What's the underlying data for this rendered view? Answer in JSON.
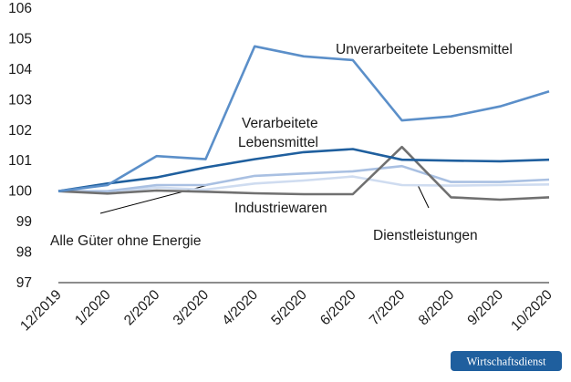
{
  "chart_data": {
    "type": "line",
    "categories": [
      "12/2019",
      "1/2020",
      "2/2020",
      "3/2020",
      "4/2020",
      "5/2020",
      "6/2020",
      "7/2020",
      "8/2020",
      "9/2020",
      "10/2020"
    ],
    "ylim": [
      97,
      106
    ],
    "yticks": [
      97,
      98,
      99,
      100,
      101,
      102,
      103,
      104,
      105,
      106
    ],
    "grid": false,
    "legend": "inline labels",
    "series": [
      {
        "name": "Unverarbeitete Lebensmittel",
        "color": "#5b8fc9",
        "values": [
          100.0,
          100.2,
          101.15,
          101.05,
          104.75,
          104.42,
          104.3,
          102.32,
          102.45,
          102.78,
          103.27
        ]
      },
      {
        "name": "Verarbeitete Lebensmittel",
        "color": "#1f5f9e",
        "values": [
          100.0,
          100.25,
          100.45,
          100.78,
          101.05,
          101.28,
          101.38,
          101.03,
          101.0,
          100.98,
          101.03
        ]
      },
      {
        "name": "Industriewaren",
        "color": "#a9c0e2",
        "values": [
          100.0,
          100.0,
          100.2,
          100.2,
          100.5,
          100.58,
          100.65,
          100.82,
          100.3,
          100.3,
          100.38
        ]
      },
      {
        "name": "Alle Güter ohne Energie",
        "color": "#cfdcf0",
        "values": [
          100.0,
          99.95,
          100.12,
          100.05,
          100.25,
          100.35,
          100.48,
          100.2,
          100.18,
          100.2,
          100.22
        ]
      },
      {
        "name": "Dienstleistungen",
        "color": "#707070",
        "values": [
          100.0,
          99.92,
          100.02,
          99.98,
          99.93,
          99.9,
          99.9,
          101.45,
          99.8,
          99.72,
          99.8
        ]
      }
    ],
    "labels": {
      "unverarbeitet": "Unverarbeitete Lebensmittel",
      "verarbeitet_line1": "Verarbeitete",
      "verarbeitet_line2": "Lebensmittel",
      "industrie": "Industriewaren",
      "alle": "Alle Güter ohne Energie",
      "dienst": "Dienstleistungen"
    }
  },
  "badge": {
    "text": "Wirtschaftsdienst",
    "color": "#1f5f9e"
  }
}
